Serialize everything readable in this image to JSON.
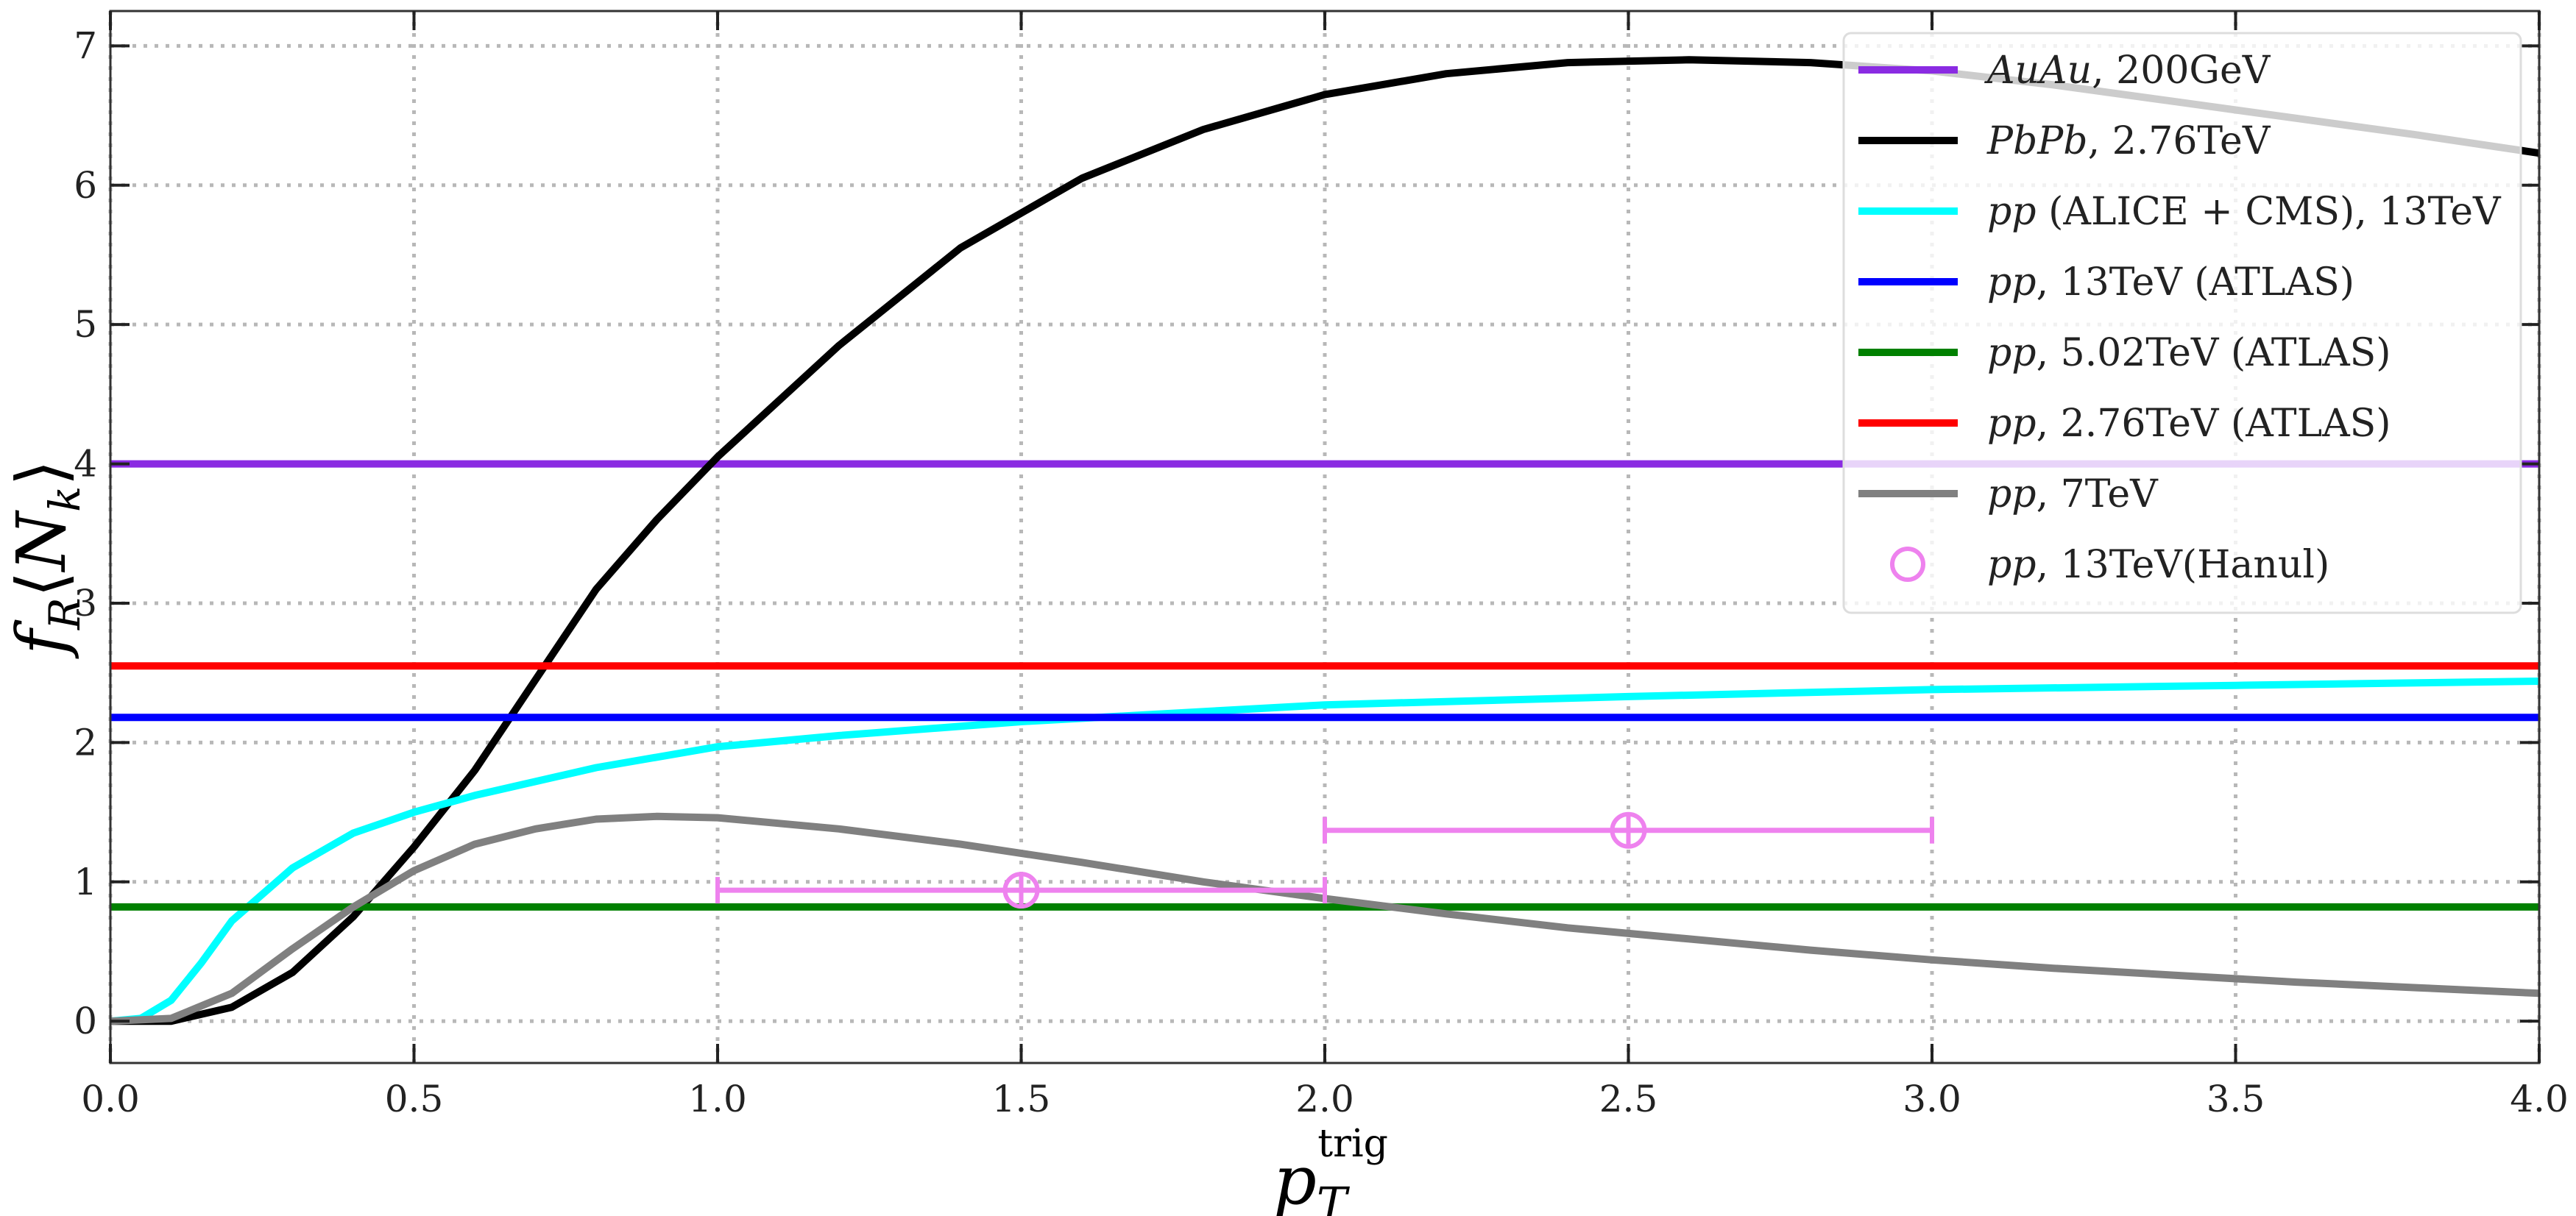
{
  "chart_data": {
    "type": "line",
    "xlim": [
      0.0,
      4.0
    ],
    "ylim": [
      -0.3,
      7.25
    ],
    "xticks": [
      "0.0",
      "0.5",
      "1.0",
      "1.5",
      "2.0",
      "2.5",
      "3.0",
      "3.5",
      "4.0"
    ],
    "xtick_values": [
      0,
      0.5,
      1,
      1.5,
      2,
      2.5,
      3,
      3.5,
      4
    ],
    "yticks": [
      "0",
      "1",
      "2",
      "3",
      "4",
      "5",
      "6",
      "7"
    ],
    "ytick_values": [
      0,
      1,
      2,
      3,
      4,
      5,
      6,
      7
    ],
    "xlabel": {
      "base": "p",
      "sub": "T",
      "sup": "trig"
    },
    "ylabel": {
      "f": "f",
      "fsub": "R",
      "open": "⟨",
      "n": "N",
      "nsub": "k",
      "close": "⟩"
    },
    "grid": true,
    "grid_style": "dotted",
    "legend_position": "top-right",
    "series": [
      {
        "name": "AuAu, 200GeV",
        "name_italic": "AuAu",
        "name_rest": ", 200GeV",
        "color": "#8a2be2",
        "kind": "hline",
        "x": [
          0,
          4
        ],
        "y": [
          4.0,
          4.0
        ]
      },
      {
        "name": "PbPb, 2.76TeV",
        "name_italic": "PbPb",
        "name_rest": ", 2.76TeV",
        "color": "#000000",
        "kind": "line",
        "x": [
          0,
          0.1,
          0.2,
          0.3,
          0.4,
          0.5,
          0.6,
          0.7,
          0.8,
          0.9,
          1.0,
          1.2,
          1.4,
          1.6,
          1.8,
          2.0,
          2.2,
          2.4,
          2.6,
          2.8,
          3.0,
          3.2,
          3.4,
          3.6,
          3.8,
          4.0
        ],
        "y": [
          0,
          0.0,
          0.1,
          0.35,
          0.75,
          1.25,
          1.8,
          2.45,
          3.1,
          3.6,
          4.05,
          4.85,
          5.55,
          6.05,
          6.4,
          6.65,
          6.8,
          6.88,
          6.9,
          6.88,
          6.82,
          6.72,
          6.6,
          6.48,
          6.36,
          6.23
        ]
      },
      {
        "name": "pp (ALICE + CMS), 13TeV",
        "name_italic": "pp",
        "name_rest": " (ALICE + CMS), 13TeV",
        "color": "#00ffff",
        "kind": "line",
        "x": [
          0,
          0.05,
          0.1,
          0.15,
          0.2,
          0.3,
          0.4,
          0.5,
          0.6,
          0.7,
          0.8,
          1.0,
          1.2,
          1.5,
          2.0,
          2.5,
          3.0,
          3.5,
          4.0
        ],
        "y": [
          0,
          0.02,
          0.15,
          0.42,
          0.72,
          1.1,
          1.35,
          1.5,
          1.62,
          1.72,
          1.82,
          1.97,
          2.05,
          2.15,
          2.27,
          2.33,
          2.38,
          2.41,
          2.44
        ]
      },
      {
        "name": "pp, 13TeV (ATLAS)",
        "name_italic": "pp",
        "name_rest": ", 13TeV (ATLAS)",
        "color": "#0000ff",
        "kind": "hline",
        "x": [
          0,
          4
        ],
        "y": [
          2.18,
          2.18
        ]
      },
      {
        "name": "pp, 5.02TeV (ATLAS)",
        "name_italic": "pp",
        "name_rest": ", 5.02TeV (ATLAS)",
        "color": "#008000",
        "kind": "hline",
        "x": [
          0,
          4
        ],
        "y": [
          0.82,
          0.82
        ]
      },
      {
        "name": "pp, 2.76TeV (ATLAS)",
        "name_italic": "pp",
        "name_rest": ", 2.76TeV (ATLAS)",
        "color": "#ff0000",
        "kind": "hline",
        "x": [
          0,
          4
        ],
        "y": [
          2.55,
          2.55
        ]
      },
      {
        "name": "pp, 7TeV",
        "name_italic": "pp",
        "name_rest": ", 7TeV",
        "color": "#808080",
        "kind": "line",
        "x": [
          0,
          0.1,
          0.2,
          0.3,
          0.4,
          0.5,
          0.6,
          0.7,
          0.8,
          0.9,
          1.0,
          1.2,
          1.4,
          1.6,
          1.8,
          2.0,
          2.2,
          2.4,
          2.6,
          2.8,
          3.0,
          3.2,
          3.4,
          3.6,
          3.8,
          4.0
        ],
        "y": [
          0,
          0.02,
          0.2,
          0.52,
          0.82,
          1.08,
          1.27,
          1.38,
          1.45,
          1.47,
          1.46,
          1.38,
          1.27,
          1.14,
          1.0,
          0.88,
          0.77,
          0.67,
          0.59,
          0.51,
          0.44,
          0.38,
          0.33,
          0.28,
          0.24,
          0.2
        ]
      },
      {
        "name": "pp, 13TeV(Hanul)",
        "name_italic": "pp",
        "name_rest": ", 13TeV(Hanul)",
        "color": "#ee82ee",
        "kind": "errorbar",
        "points": [
          {
            "x": 1.5,
            "y": 0.94,
            "xerr": 0.5
          },
          {
            "x": 2.5,
            "y": 1.37,
            "xerr": 0.5
          }
        ]
      }
    ]
  }
}
